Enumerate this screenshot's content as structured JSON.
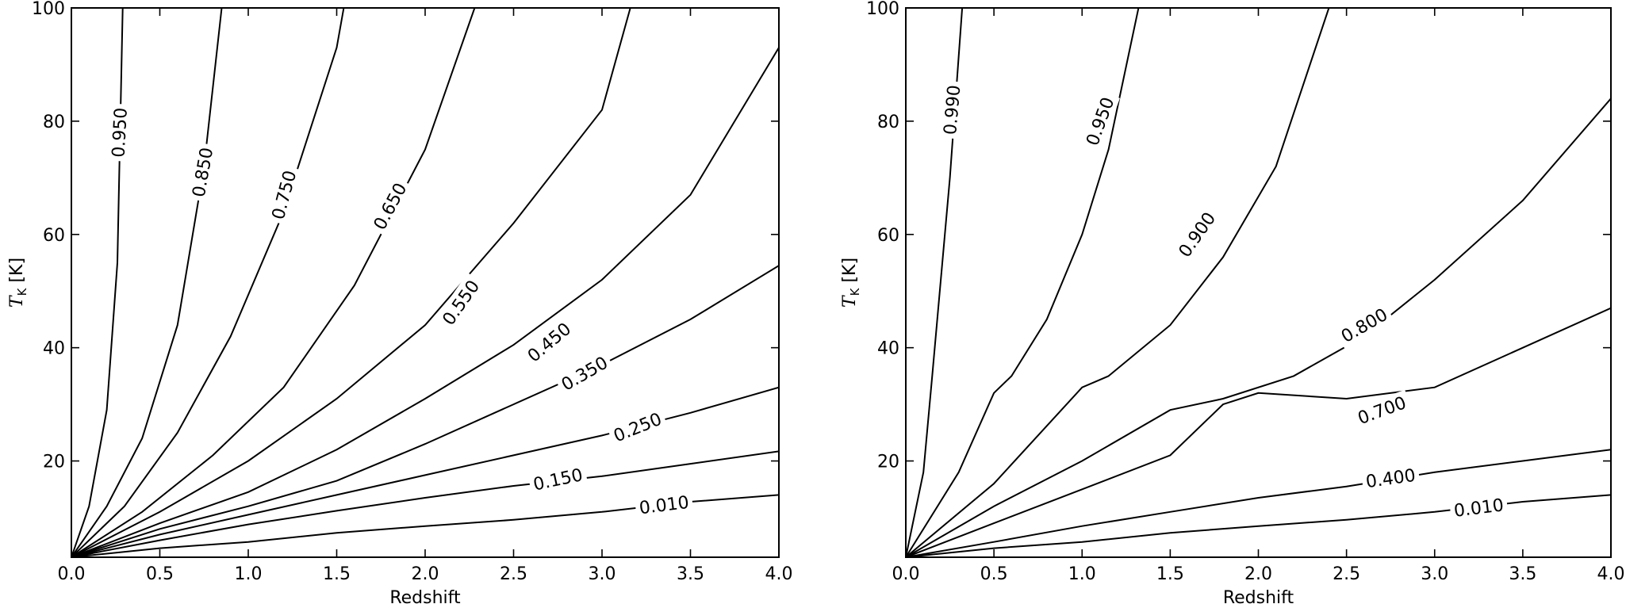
{
  "chart_data": [
    {
      "type": "contour",
      "xlabel": "Redshift",
      "ylabel_main": "T",
      "ylabel_sub": "K",
      "ylabel_unit": " [K]",
      "xlim": [
        0.0,
        4.0
      ],
      "ylim": [
        3,
        100
      ],
      "x_ticks": [
        "0.0",
        "0.5",
        "1.0",
        "1.5",
        "2.0",
        "2.5",
        "3.0",
        "3.5",
        "4.0"
      ],
      "y_ticks": [
        "20",
        "40",
        "60",
        "80",
        "100"
      ],
      "contours": [
        {
          "level": "0.010",
          "points": [
            [
              0,
              3
            ],
            [
              0.5,
              4.6
            ],
            [
              1.0,
              5.7
            ],
            [
              1.5,
              7.3
            ],
            [
              2.0,
              8.5
            ],
            [
              2.5,
              9.6
            ],
            [
              3.0,
              11.0
            ],
            [
              3.5,
              12.8
            ],
            [
              4.0,
              14.0
            ]
          ],
          "label_at": [
            3.35,
            12.3
          ],
          "angle": -7
        },
        {
          "level": "0.150",
          "points": [
            [
              0,
              3
            ],
            [
              0.5,
              6.0
            ],
            [
              1.0,
              8.8
            ],
            [
              1.5,
              11.2
            ],
            [
              2.0,
              13.5
            ],
            [
              2.5,
              15.6
            ],
            [
              3.0,
              17.3
            ],
            [
              3.5,
              19.5
            ],
            [
              4.0,
              21.7
            ]
          ],
          "label_at": [
            2.75,
            16.8
          ],
          "angle": -12
        },
        {
          "level": "0.250",
          "points": [
            [
              0,
              3
            ],
            [
              0.5,
              7.0
            ],
            [
              1.0,
              10.5
            ],
            [
              1.5,
              14.0
            ],
            [
              2.0,
              17.5
            ],
            [
              2.5,
              21.0
            ],
            [
              3.0,
              24.5
            ],
            [
              3.5,
              28.5
            ],
            [
              4.0,
              33.0
            ]
          ],
          "label_at": [
            3.2,
            26.0
          ],
          "angle": -22
        },
        {
          "level": "0.350",
          "points": [
            [
              0,
              3
            ],
            [
              0.5,
              8.0
            ],
            [
              1.0,
              12.0
            ],
            [
              1.5,
              16.5
            ],
            [
              2.0,
              23.0
            ],
            [
              2.5,
              30.0
            ],
            [
              3.0,
              37.0
            ],
            [
              3.5,
              45.0
            ],
            [
              4.0,
              54.5
            ]
          ],
          "label_at": [
            2.9,
            35.5
          ],
          "angle": -30
        },
        {
          "level": "0.450",
          "points": [
            [
              0,
              3
            ],
            [
              0.5,
              9.0
            ],
            [
              1.0,
              14.5
            ],
            [
              1.5,
              22.0
            ],
            [
              2.0,
              31.0
            ],
            [
              2.5,
              40.5
            ],
            [
              3.0,
              52.0
            ],
            [
              3.5,
              67.0
            ],
            [
              4.0,
              93.0
            ]
          ],
          "label_at": [
            2.7,
            41.0
          ],
          "angle": -40
        },
        {
          "level": "0.550",
          "points": [
            [
              0,
              3
            ],
            [
              0.5,
              11.0
            ],
            [
              1.0,
              20.0
            ],
            [
              1.5,
              31.0
            ],
            [
              2.0,
              44.0
            ],
            [
              2.5,
              62.0
            ],
            [
              3.0,
              82.0
            ],
            [
              3.16,
              100
            ]
          ],
          "label_at": [
            2.2,
            48.0
          ],
          "angle": -55
        },
        {
          "level": "0.650",
          "points": [
            [
              0,
              3
            ],
            [
              0.4,
              11.0
            ],
            [
              0.8,
              21.0
            ],
            [
              1.2,
              33.0
            ],
            [
              1.6,
              51.0
            ],
            [
              2.0,
              75.0
            ],
            [
              2.28,
              100
            ]
          ],
          "label_at": [
            1.8,
            65.0
          ],
          "angle": -62
        },
        {
          "level": "0.750",
          "points": [
            [
              0,
              3
            ],
            [
              0.3,
              12.0
            ],
            [
              0.6,
              25.0
            ],
            [
              0.9,
              42.0
            ],
            [
              1.2,
              64.0
            ],
            [
              1.5,
              93.0
            ],
            [
              1.54,
              100
            ]
          ],
          "label_at": [
            1.2,
            67.0
          ],
          "angle": -75
        },
        {
          "level": "0.850",
          "points": [
            [
              0,
              3
            ],
            [
              0.2,
              12.0
            ],
            [
              0.4,
              24.0
            ],
            [
              0.6,
              44.0
            ],
            [
              0.75,
              72.0
            ],
            [
              0.85,
              100
            ]
          ],
          "label_at": [
            0.74,
            71.0
          ],
          "angle": -80
        },
        {
          "level": "0.950",
          "points": [
            [
              0,
              3
            ],
            [
              0.1,
              12.0
            ],
            [
              0.2,
              29.0
            ],
            [
              0.26,
              55.0
            ],
            [
              0.29,
              100
            ]
          ],
          "label_at": [
            0.27,
            78.0
          ],
          "angle": -87
        }
      ]
    },
    {
      "type": "contour",
      "xlabel": "Redshift",
      "ylabel_main": "T",
      "ylabel_sub": "K",
      "ylabel_unit": " [K]",
      "xlim": [
        0.0,
        4.0
      ],
      "ylim": [
        3,
        100
      ],
      "x_ticks": [
        "0.0",
        "0.5",
        "1.0",
        "1.5",
        "2.0",
        "2.5",
        "3.0",
        "3.5",
        "4.0"
      ],
      "y_ticks": [
        "20",
        "40",
        "60",
        "80",
        "100"
      ],
      "contours": [
        {
          "level": "0.010",
          "points": [
            [
              0,
              3
            ],
            [
              0.5,
              4.6
            ],
            [
              1.0,
              5.7
            ],
            [
              1.5,
              7.3
            ],
            [
              2.0,
              8.5
            ],
            [
              2.5,
              9.6
            ],
            [
              3.0,
              11.0
            ],
            [
              3.5,
              12.8
            ],
            [
              4.0,
              14.0
            ]
          ],
          "label_at": [
            3.25,
            11.8
          ],
          "angle": -7
        },
        {
          "level": "0.400",
          "points": [
            [
              0,
              3
            ],
            [
              0.5,
              5.7
            ],
            [
              1.0,
              8.5
            ],
            [
              1.5,
              11.0
            ],
            [
              2.0,
              13.5
            ],
            [
              2.5,
              15.5
            ],
            [
              3.0,
              18.0
            ],
            [
              3.5,
              20.0
            ],
            [
              4.0,
              22.0
            ]
          ],
          "label_at": [
            2.75,
            17.0
          ],
          "angle": -8
        },
        {
          "level": "0.700",
          "points": [
            [
              0,
              3
            ],
            [
              0.5,
              9.0
            ],
            [
              1.0,
              15.0
            ],
            [
              1.5,
              21.0
            ],
            [
              1.8,
              30.0
            ],
            [
              2.0,
              32.0
            ],
            [
              2.5,
              31.0
            ],
            [
              3.0,
              33.0
            ],
            [
              3.5,
              40.0
            ],
            [
              4.0,
              47.0
            ]
          ],
          "label_at": [
            2.7,
            29.0
          ],
          "angle": -20
        },
        {
          "level": "0.800",
          "points": [
            [
              0,
              3
            ],
            [
              0.5,
              12.0
            ],
            [
              1.0,
              20.0
            ],
            [
              1.5,
              29.0
            ],
            [
              1.8,
              31.0
            ],
            [
              2.2,
              35.0
            ],
            [
              2.6,
              42.0
            ],
            [
              3.0,
              52.0
            ],
            [
              3.5,
              66.0
            ],
            [
              4.0,
              84.0
            ]
          ],
          "label_at": [
            2.6,
            44.0
          ],
          "angle": -30
        },
        {
          "level": "0.900",
          "points": [
            [
              0,
              3
            ],
            [
              0.5,
              16.0
            ],
            [
              1.0,
              33.0
            ],
            [
              1.15,
              35.0
            ],
            [
              1.5,
              44.0
            ],
            [
              1.8,
              56.0
            ],
            [
              2.1,
              72.0
            ],
            [
              2.4,
              100
            ]
          ],
          "label_at": [
            1.65,
            60.0
          ],
          "angle": -55
        },
        {
          "level": "0.950",
          "points": [
            [
              0,
              3
            ],
            [
              0.3,
              18.0
            ],
            [
              0.5,
              32.0
            ],
            [
              0.6,
              35.0
            ],
            [
              0.8,
              45.0
            ],
            [
              1.0,
              60.0
            ],
            [
              1.15,
              75.0
            ],
            [
              1.32,
              100
            ]
          ],
          "label_at": [
            1.1,
            80.0
          ],
          "angle": -70
        },
        {
          "level": "0.990",
          "points": [
            [
              0,
              3
            ],
            [
              0.1,
              18.0
            ],
            [
              0.15,
              35.0
            ],
            [
              0.25,
              70.0
            ],
            [
              0.32,
              100
            ]
          ],
          "label_at": [
            0.26,
            82.0
          ],
          "angle": -85
        }
      ]
    }
  ]
}
